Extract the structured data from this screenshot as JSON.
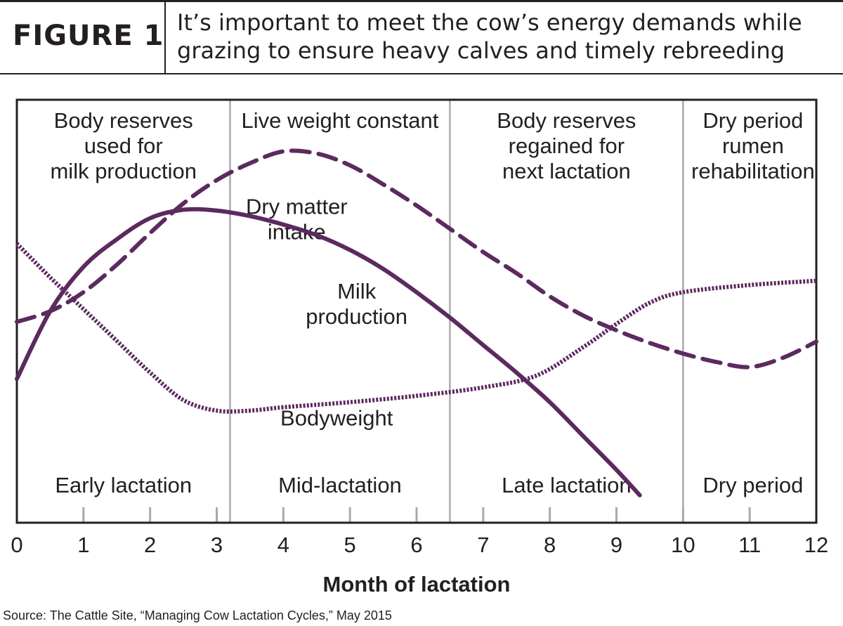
{
  "figure_label": "FIGURE 1",
  "title_lines": [
    "It’s important to meet the cow’s energy demands while",
    "grazing to ensure heavy calves and timely rebreeding"
  ],
  "source": "Source: The Cattle Site, “Managing Cow Lactation Cycles,” May 2015",
  "chart_data": {
    "type": "line",
    "xlabel": "Month of lactation",
    "ylabel": "",
    "xlim": [
      0,
      12
    ],
    "ylim": [
      0,
      100
    ],
    "x_ticks": [
      0,
      1,
      2,
      3,
      4,
      5,
      6,
      7,
      8,
      9,
      10,
      11,
      12
    ],
    "phase_boundaries": [
      3.2,
      6.5,
      10
    ],
    "phases": [
      {
        "top_lines": [
          "Body reserves",
          "used for",
          "milk production"
        ],
        "bottom": "Early lactation",
        "center": 1.6
      },
      {
        "top_lines": [
          "Live weight constant"
        ],
        "bottom": "Mid-lactation",
        "center": 4.85
      },
      {
        "top_lines": [
          "Body reserves",
          "regained for",
          "next lactation"
        ],
        "bottom": "Late lactation",
        "center": 8.25
      },
      {
        "top_lines": [
          "Dry period",
          "rumen",
          "rehabilitation"
        ],
        "bottom": "Dry period",
        "center": 11.05
      }
    ],
    "series_color": "#5c2a5e",
    "series": [
      {
        "name": "Dry matter intake",
        "style": "dashed",
        "label_lines": [
          "Dry matter",
          "intake"
        ],
        "label_at": [
          4.2,
          73
        ],
        "points": [
          [
            0,
            47.5
          ],
          [
            0.5,
            50
          ],
          [
            1,
            54.5
          ],
          [
            1.5,
            61
          ],
          [
            2,
            68.5
          ],
          [
            2.5,
            75.5
          ],
          [
            3,
            81
          ],
          [
            3.5,
            85
          ],
          [
            4,
            87.8
          ],
          [
            4.5,
            87.3
          ],
          [
            5,
            84.5
          ],
          [
            5.5,
            80
          ],
          [
            6,
            75
          ],
          [
            6.5,
            69.5
          ],
          [
            7,
            64
          ],
          [
            7.5,
            59
          ],
          [
            8,
            53.5
          ],
          [
            8.5,
            49
          ],
          [
            9,
            45.5
          ],
          [
            9.5,
            42.5
          ],
          [
            10,
            40
          ],
          [
            10.5,
            38
          ],
          [
            11,
            36.8
          ],
          [
            11.5,
            39
          ],
          [
            12,
            42.8
          ]
        ]
      },
      {
        "name": "Milk production",
        "style": "solid",
        "label_lines": [
          "Milk",
          "production"
        ],
        "label_at": [
          5.1,
          53
        ],
        "points": [
          [
            0,
            34
          ],
          [
            0.5,
            50
          ],
          [
            1,
            60.5
          ],
          [
            1.5,
            67
          ],
          [
            2,
            72
          ],
          [
            2.5,
            74
          ],
          [
            3,
            73.8
          ],
          [
            3.5,
            72.5
          ],
          [
            4,
            70.5
          ],
          [
            4.5,
            68
          ],
          [
            5,
            64.5
          ],
          [
            5.5,
            60
          ],
          [
            6,
            54.5
          ],
          [
            6.5,
            48.5
          ],
          [
            7,
            42
          ],
          [
            7.5,
            35.5
          ],
          [
            8,
            28.5
          ],
          [
            8.5,
            20.5
          ],
          [
            9,
            12.5
          ],
          [
            9.35,
            6.5
          ]
        ]
      },
      {
        "name": "Bodyweight",
        "style": "dotted",
        "label_lines": [
          "Bodyweight"
        ],
        "label_at": [
          4.8,
          23
        ],
        "points": [
          [
            0,
            66
          ],
          [
            0.5,
            58
          ],
          [
            1,
            50.5
          ],
          [
            1.5,
            43
          ],
          [
            2,
            35.5
          ],
          [
            2.5,
            29
          ],
          [
            3,
            26.5
          ],
          [
            3.5,
            26.5
          ],
          [
            4,
            27.3
          ],
          [
            5,
            28.5
          ],
          [
            6,
            30
          ],
          [
            7,
            32
          ],
          [
            7.8,
            34.8
          ],
          [
            8.5,
            41.5
          ],
          [
            9,
            47
          ],
          [
            9.5,
            52
          ],
          [
            10,
            54.5
          ],
          [
            11,
            56.2
          ],
          [
            12,
            57.2
          ]
        ]
      }
    ]
  }
}
